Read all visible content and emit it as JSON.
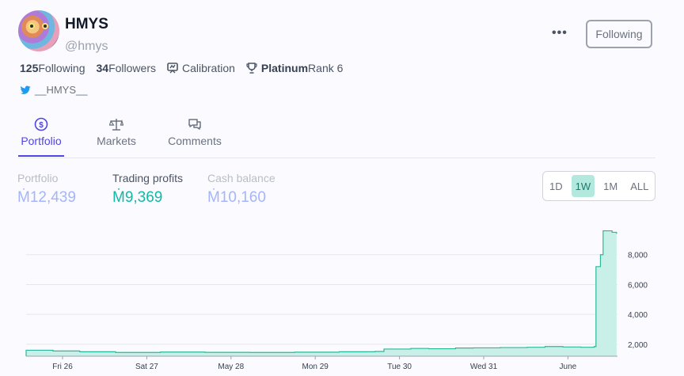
{
  "profile": {
    "name": "HMYS",
    "handle": "@hmys",
    "following_count": "125",
    "following_label": "Following",
    "followers_count": "34",
    "followers_label": "Followers",
    "calibration_label": "Calibration",
    "rank_tier": "Platinum",
    "rank_label": "Rank 6",
    "twitter": "__HMYS__",
    "follow_button": "Following"
  },
  "tabs": [
    {
      "label": "Portfolio",
      "icon": "dollar-circle-icon",
      "active": true
    },
    {
      "label": "Markets",
      "icon": "scale-icon",
      "active": false
    },
    {
      "label": "Comments",
      "icon": "chat-icon",
      "active": false
    }
  ],
  "metrics": {
    "portfolio_label": "Portfolio",
    "portfolio_value": "Ṁ12,439",
    "profits_label": "Trading profits",
    "profits_value": "Ṁ9,369",
    "cash_label": "Cash balance",
    "cash_value": "Ṁ10,160"
  },
  "range_options": [
    "1D",
    "1W",
    "1M",
    "ALL"
  ],
  "range_selected": "1W",
  "colors": {
    "accent": "#4f46e5",
    "profit": "#14b8a6",
    "muted_value": "#a5b4fc",
    "chart_line": "#2bb89a",
    "chart_fill": "#c8efe8"
  },
  "chart_data": {
    "type": "area",
    "x_ticks": [
      "Fri 26",
      "Sat 27",
      "May 28",
      "Mon 29",
      "Tue 30",
      "Wed 31",
      "June"
    ],
    "y_ticks": [
      2000,
      4000,
      6000,
      8000
    ],
    "ylim": [
      1200,
      10000
    ],
    "x": [
      0,
      0.3,
      0.6,
      1.0,
      1.5,
      2.0,
      2.5,
      3.0,
      3.5,
      3.9,
      4.0,
      4.3,
      4.5,
      4.8,
      5.0,
      5.3,
      5.6,
      5.8,
      6.0,
      6.2,
      6.35,
      6.37,
      6.42,
      6.45,
      6.55,
      6.6
    ],
    "values": [
      1600,
      1550,
      1500,
      1450,
      1480,
      1460,
      1450,
      1470,
      1500,
      1520,
      1680,
      1720,
      1700,
      1750,
      1760,
      1780,
      1800,
      1850,
      1820,
      1800,
      1850,
      7200,
      8000,
      9600,
      9500,
      9400
    ],
    "grid": true,
    "legend": "none"
  }
}
